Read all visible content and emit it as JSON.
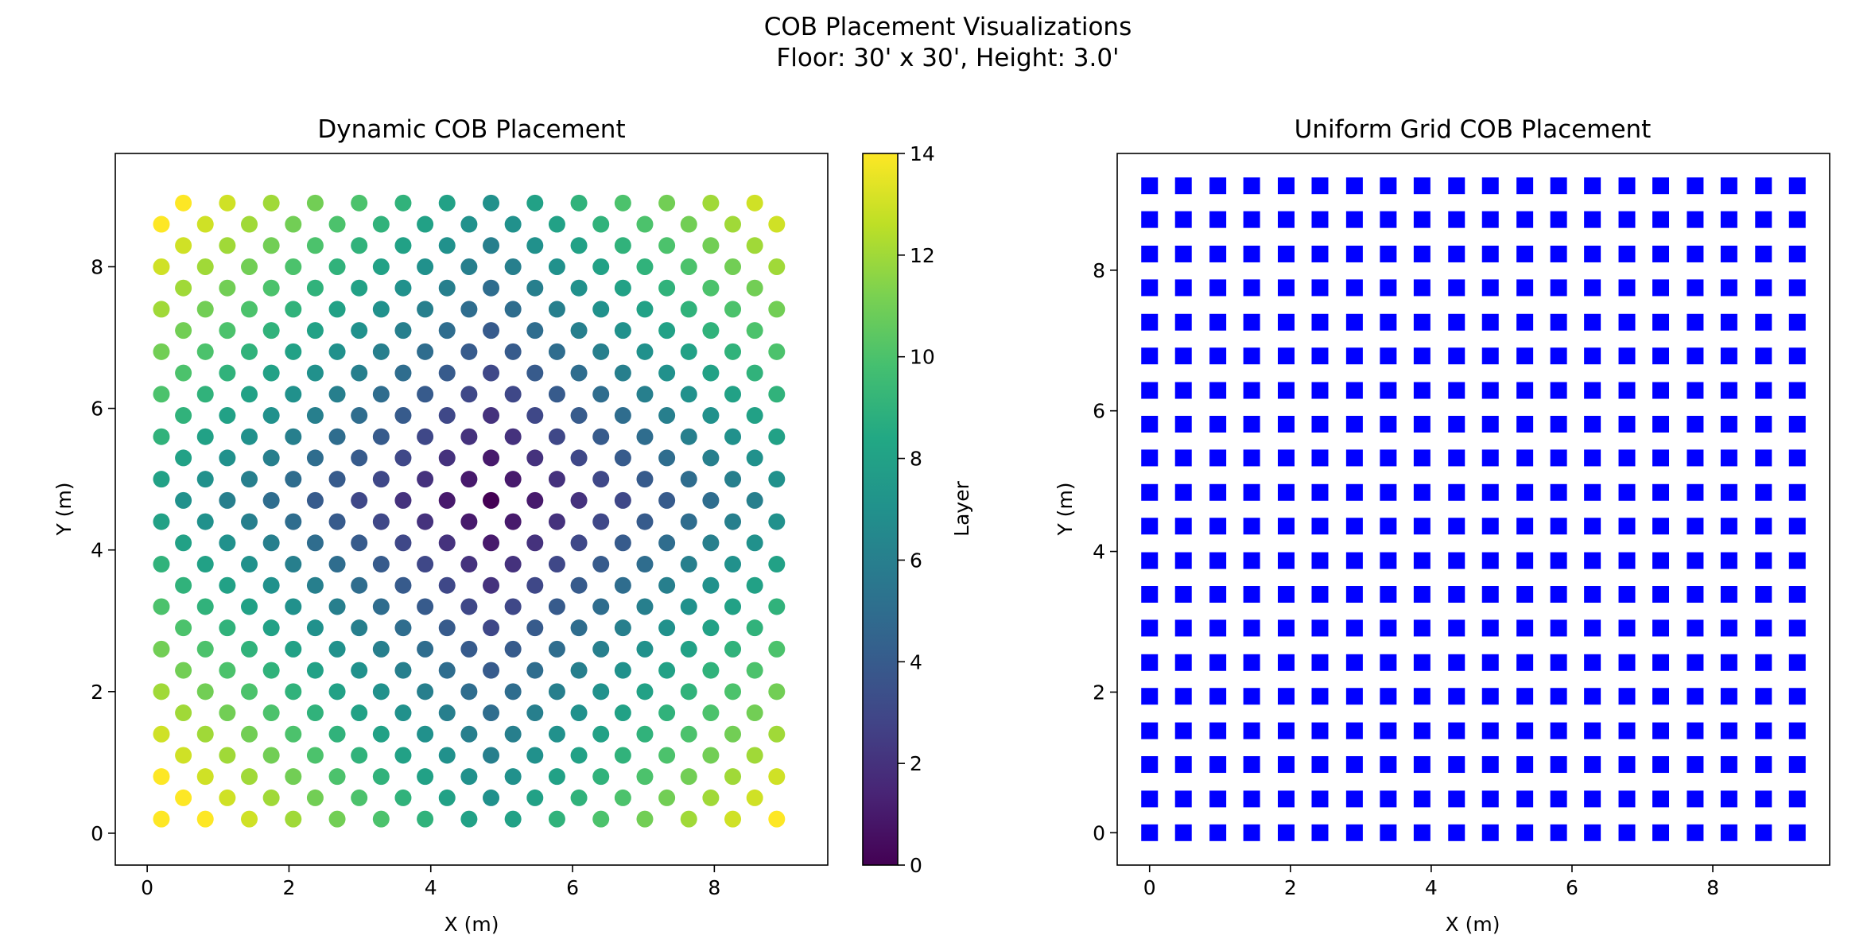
{
  "figure": {
    "title_line1": "COB Placement Visualizations",
    "title_line2": "Floor: 30' x 30', Height: 3.0'"
  },
  "chart_data": [
    {
      "type": "scatter",
      "title": "Dynamic COB Placement",
      "xlabel": "X (m)",
      "ylabel": "Y (m)",
      "xlim": [
        -0.45,
        9.6
      ],
      "ylim": [
        -0.45,
        9.6
      ],
      "xticks": [
        0,
        2,
        4,
        6,
        8
      ],
      "yticks": [
        0,
        2,
        4,
        6,
        8
      ],
      "marker": "circle",
      "layout": "staggered hexagonal grid: rows every 0.3 m (y 0.2–8.9), spacing 0.615 m, odd rows offset by half a step; colour = layer (ring distance from centre point at 4.57,4.57)",
      "row_y": [
        0.2,
        0.5,
        0.8,
        1.1,
        1.4,
        1.7,
        2.0,
        2.3,
        2.6,
        2.9,
        3.2,
        3.5,
        3.8,
        4.1,
        4.4,
        4.7,
        5.0,
        5.3,
        5.6,
        5.9,
        6.2,
        6.5,
        6.8,
        7.1,
        7.4,
        7.7,
        8.0,
        8.3,
        8.6,
        8.9
      ],
      "even_row_x": [
        0.2,
        0.82,
        1.44,
        2.06,
        2.68,
        3.3,
        3.92,
        4.54,
        5.16,
        5.78,
        6.4,
        7.02,
        7.64,
        8.26,
        8.88
      ],
      "odd_row_x": [
        0.51,
        1.13,
        1.75,
        2.37,
        2.99,
        3.61,
        4.23,
        4.85,
        5.47,
        6.09,
        6.71,
        7.33,
        7.95,
        8.57
      ],
      "grid": false,
      "colorbar": {
        "label": "Layer",
        "colormap": "viridis",
        "min": 0,
        "max": 14,
        "ticks": [
          0,
          2,
          4,
          6,
          8,
          10,
          12,
          14
        ]
      }
    },
    {
      "type": "scatter",
      "title": "Uniform Grid COB Placement",
      "xlabel": "X (m)",
      "ylabel": "Y (m)",
      "xlim": [
        -0.46,
        9.66
      ],
      "ylim": [
        -0.46,
        9.66
      ],
      "xticks": [
        0,
        2,
        4,
        6,
        8
      ],
      "yticks": [
        0,
        2,
        4,
        6,
        8
      ],
      "marker": "square",
      "color": "#0000ff",
      "x": [
        0,
        0.48,
        0.97,
        1.45,
        1.94,
        2.42,
        2.91,
        3.39,
        3.87,
        4.36,
        4.84,
        5.33,
        5.81,
        6.29,
        6.78,
        7.26,
        7.75,
        8.23,
        8.72,
        9.2
      ],
      "y": [
        0,
        0.48,
        0.97,
        1.45,
        1.94,
        2.42,
        2.91,
        3.39,
        3.87,
        4.36,
        4.84,
        5.33,
        5.81,
        6.29,
        6.78,
        7.26,
        7.75,
        8.23,
        8.72,
        9.2
      ],
      "grid": false
    }
  ]
}
